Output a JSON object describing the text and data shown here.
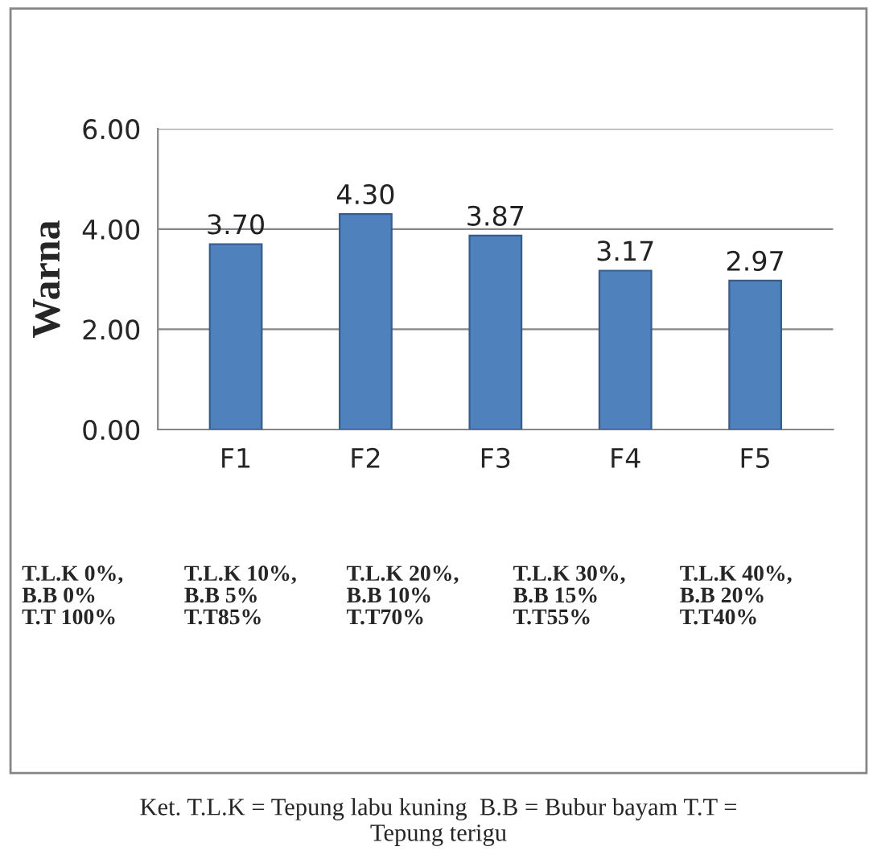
{
  "chart_data": {
    "type": "bar",
    "ylabel": "Warna",
    "categories": [
      "F1",
      "F2",
      "F3",
      "F4",
      "F5"
    ],
    "values": [
      3.7,
      4.3,
      3.87,
      3.17,
      2.97
    ],
    "value_labels": [
      "3.70",
      "4.30",
      "3.87",
      "3.17",
      "2.97"
    ],
    "color": "#4f81bd",
    "ylim": [
      0,
      6
    ],
    "yticks": [
      {
        "value": 0,
        "label": "0.00"
      },
      {
        "value": 2,
        "label": "2.00"
      },
      {
        "value": 4,
        "label": "4.00"
      },
      {
        "value": 6,
        "label": "6.00"
      }
    ],
    "grid": "y",
    "annotations": [
      "T.L.K 0%,\nB.B 0%\nT.T 100%",
      "T.L.K 10%,\nB.B 5%\nT.T85%",
      "T.L.K 20%,\nB.B 10%\nT.T70%",
      "T.L.K 30%,\nB.B 15%\nT.T55%",
      "T.L.K 40%,\nB.B 20%\nT.T40%",
      "Ket. T.L.K = Tepung labu kuning  B.B = Bubur bayam T.T =\nTepung terigu"
    ]
  }
}
